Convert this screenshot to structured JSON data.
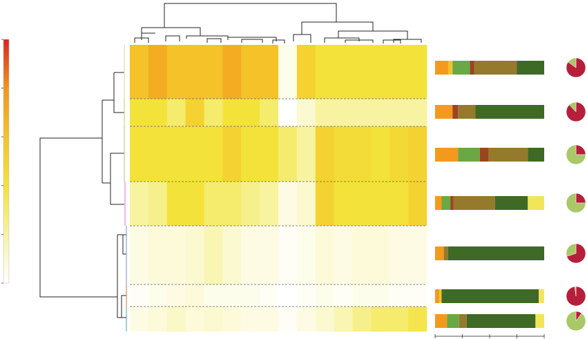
{
  "chart_data": [
    {
      "type": "heatmap",
      "values": [
        [
          3,
          3.5,
          3,
          3,
          3,
          3.5,
          3,
          3,
          0.2,
          2.5,
          2,
          2,
          2,
          2,
          2,
          2
        ],
        [
          2,
          2,
          1.5,
          2.5,
          1.5,
          2,
          2,
          1.5,
          0,
          0.5,
          1,
          1,
          1,
          1,
          1,
          1
        ],
        [
          2,
          2,
          2,
          2,
          2,
          2.5,
          2,
          2,
          1.5,
          1,
          2.5,
          2.2,
          2.2,
          2,
          2.3,
          2.5
        ],
        [
          1,
          1.2,
          2,
          2,
          1.5,
          1.5,
          1.2,
          1,
          0.3,
          0.5,
          2.5,
          2,
          2,
          2,
          2,
          2.5
        ],
        [
          0.3,
          0.4,
          0.4,
          0.5,
          0.8,
          0.5,
          0.3,
          0.3,
          0.1,
          0.2,
          0.4,
          0.3,
          0.4,
          0.4,
          0.3,
          0.3
        ],
        [
          0.1,
          0.2,
          0.3,
          0.4,
          0.2,
          0.2,
          0.2,
          0.1,
          0,
          0.1,
          0.2,
          0.1,
          0.2,
          0.2,
          0.1,
          0.1
        ],
        [
          0.3,
          0.4,
          0.6,
          0.4,
          0.5,
          0.4,
          0.3,
          0.3,
          0.1,
          0.3,
          0.5,
          0.8,
          1.2,
          1.5,
          1.5,
          1.8
        ]
      ],
      "zlim": [
        0,
        5
      ],
      "zticks": [
        0,
        1,
        2,
        3,
        4,
        5
      ],
      "colors": [
        "#ffffff",
        "#f7f3a0",
        "#f3e23a",
        "#f5c22a",
        "#f2961c",
        "#d7261e"
      ]
    },
    {
      "type": "stacked_bar",
      "orientation": "horizontal",
      "xlim": [
        0,
        100
      ],
      "xticks": [
        0,
        25,
        50,
        75,
        100
      ],
      "series": [
        {
          "color": "#f39a1e",
          "values": [
            12,
            16,
            21,
            6,
            8,
            4,
            11
          ]
        },
        {
          "color": "#f2c230",
          "values": [
            4,
            0,
            0,
            0,
            0,
            2,
            0
          ]
        },
        {
          "color": "#6aa845",
          "values": [
            16,
            0,
            20,
            8,
            0,
            0,
            11
          ]
        },
        {
          "color": "#9a4520",
          "values": [
            4,
            5,
            8,
            3,
            0,
            0,
            0
          ]
        },
        {
          "color": "#957a2c",
          "values": [
            39,
            16,
            36,
            38,
            4,
            0,
            7
          ]
        },
        {
          "color": "#3e6a26",
          "values": [
            25,
            63,
            15,
            30,
            88,
            89,
            63
          ]
        },
        {
          "color": "#f2e55a",
          "values": [
            0,
            0,
            0,
            15,
            0,
            5,
            8
          ]
        }
      ]
    },
    {
      "type": "pie",
      "series": [
        {
          "color": "#b61f3a",
          "values": [
            85,
            88,
            25,
            25,
            70,
            98,
            10
          ]
        },
        {
          "color": "#a9c868",
          "values": [
            15,
            12,
            75,
            75,
            30,
            2,
            90
          ]
        }
      ]
    }
  ]
}
